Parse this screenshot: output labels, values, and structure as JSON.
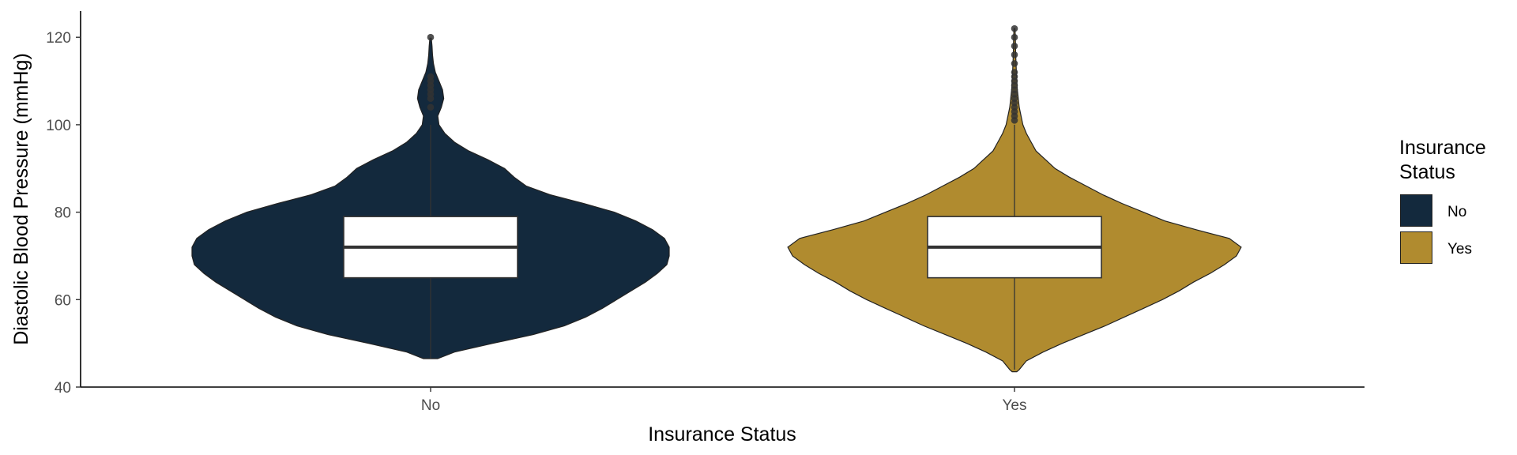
{
  "chart_data": {
    "type": "violin",
    "xlabel": "Insurance Status",
    "ylabel": "Diastolic Blood Pressure (mmHg)",
    "ylim": [
      40,
      126
    ],
    "yticks": [
      40,
      60,
      80,
      100,
      120
    ],
    "categories": [
      "No",
      "Yes"
    ],
    "grid": false,
    "legend": {
      "title_lines": [
        "Insurance",
        "Status"
      ],
      "placement": "right",
      "entries": [
        {
          "label": "No",
          "color": "#13293d"
        },
        {
          "label": "Yes",
          "color": "#b08b2f"
        }
      ]
    },
    "series": [
      {
        "name": "No",
        "color": "#13293d",
        "density": [
          [
            46.5,
            0.03
          ],
          [
            48,
            0.1
          ],
          [
            50,
            0.26
          ],
          [
            52,
            0.43
          ],
          [
            54,
            0.56
          ],
          [
            56,
            0.65
          ],
          [
            58,
            0.72
          ],
          [
            60,
            0.78
          ],
          [
            62,
            0.84
          ],
          [
            64,
            0.9
          ],
          [
            66,
            0.95
          ],
          [
            68,
            0.99
          ],
          [
            70,
            1.0
          ],
          [
            72,
            1.0
          ],
          [
            74,
            0.98
          ],
          [
            76,
            0.93
          ],
          [
            78,
            0.86
          ],
          [
            80,
            0.77
          ],
          [
            82,
            0.64
          ],
          [
            84,
            0.5
          ],
          [
            86,
            0.4
          ],
          [
            88,
            0.35
          ],
          [
            90,
            0.31
          ],
          [
            92,
            0.24
          ],
          [
            94,
            0.16
          ],
          [
            96,
            0.1
          ],
          [
            98,
            0.06
          ],
          [
            100,
            0.035
          ],
          [
            102,
            0.03
          ],
          [
            104,
            0.045
          ],
          [
            106,
            0.055
          ],
          [
            108,
            0.05
          ],
          [
            110,
            0.035
          ],
          [
            112,
            0.02
          ],
          [
            114,
            0.012
          ],
          [
            116,
            0.008
          ],
          [
            118,
            0.006
          ],
          [
            119.8,
            0.003
          ]
        ],
        "box": {
          "whisker_low": 46.5,
          "q1": 65,
          "median": 72,
          "q3": 79,
          "whisker_high": 100
        },
        "outliers": [
          104,
          106,
          107,
          108,
          109,
          110,
          111,
          120
        ]
      },
      {
        "name": "Yes",
        "color": "#b08b2f",
        "density": [
          [
            43.5,
            0.01
          ],
          [
            44,
            0.02
          ],
          [
            46,
            0.05
          ],
          [
            48,
            0.12
          ],
          [
            50,
            0.2
          ],
          [
            52,
            0.29
          ],
          [
            54,
            0.38
          ],
          [
            56,
            0.46
          ],
          [
            58,
            0.54
          ],
          [
            60,
            0.62
          ],
          [
            62,
            0.69
          ],
          [
            64,
            0.75
          ],
          [
            66,
            0.82
          ],
          [
            68,
            0.88
          ],
          [
            70,
            0.93
          ],
          [
            72,
            0.95
          ],
          [
            74,
            0.9
          ],
          [
            76,
            0.76
          ],
          [
            78,
            0.63
          ],
          [
            80,
            0.54
          ],
          [
            82,
            0.45
          ],
          [
            84,
            0.37
          ],
          [
            86,
            0.3
          ],
          [
            88,
            0.23
          ],
          [
            90,
            0.17
          ],
          [
            92,
            0.13
          ],
          [
            94,
            0.09
          ],
          [
            96,
            0.07
          ],
          [
            98,
            0.05
          ],
          [
            100,
            0.035
          ],
          [
            104,
            0.02
          ],
          [
            108,
            0.012
          ],
          [
            112,
            0.008
          ],
          [
            116,
            0.005
          ],
          [
            119,
            0.004
          ],
          [
            121,
            0.003
          ],
          [
            122,
            0.002
          ]
        ],
        "box": {
          "whisker_low": 44,
          "q1": 65,
          "median": 72,
          "q3": 79,
          "whisker_high": 100
        },
        "outliers": [
          101,
          102,
          103,
          104,
          105,
          106,
          107,
          108,
          109,
          110,
          111,
          112,
          114,
          116,
          118,
          120,
          122
        ]
      }
    ]
  }
}
